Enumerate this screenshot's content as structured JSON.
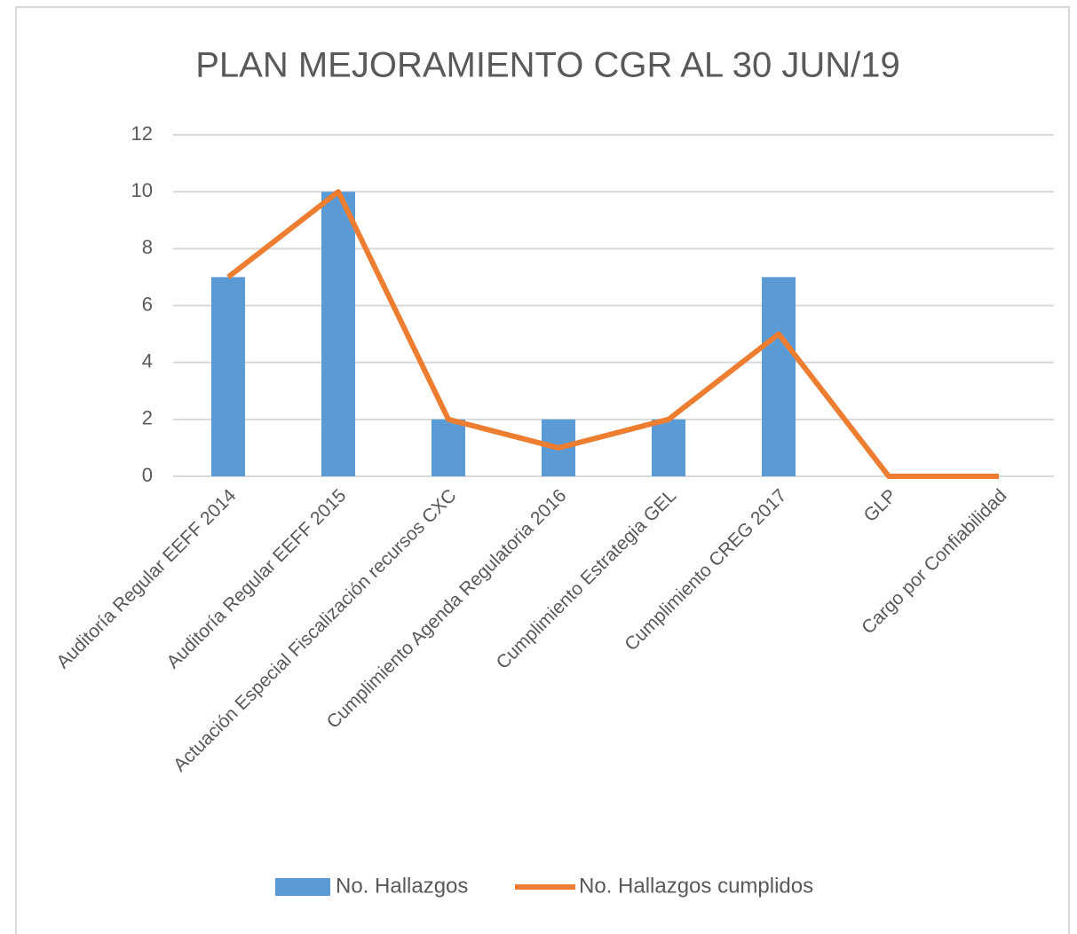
{
  "chart_data": {
    "type": "bar",
    "title": "PLAN MEJORAMIENTO CGR AL 30 JUN/19",
    "categories": [
      "Auditoría Regular EEFF 2014",
      "Auditoría Regular EEFF 2015",
      "Actuación Especial Fiscalización recursos CXC",
      "Cumplimiento Agenda Regulatoria 2016",
      "Cumplimiento Estrategia GEL",
      "Cumplimiento CREG 2017",
      "GLP",
      "Cargo por Confiabilidad"
    ],
    "series": [
      {
        "name": "No. Hallazgos",
        "type": "bar",
        "color": "#5b9bd5",
        "values": [
          7,
          10,
          2,
          2,
          2,
          7,
          0,
          0
        ]
      },
      {
        "name": "No. Hallazgos cumplidos",
        "type": "line",
        "color": "#ed7d31",
        "values": [
          7,
          10,
          2,
          1,
          2,
          5,
          0,
          0
        ]
      }
    ],
    "ylim": [
      0,
      12
    ],
    "yticks": [
      0,
      2,
      4,
      6,
      8,
      10,
      12
    ],
    "grid": true,
    "legend": "bottom"
  }
}
